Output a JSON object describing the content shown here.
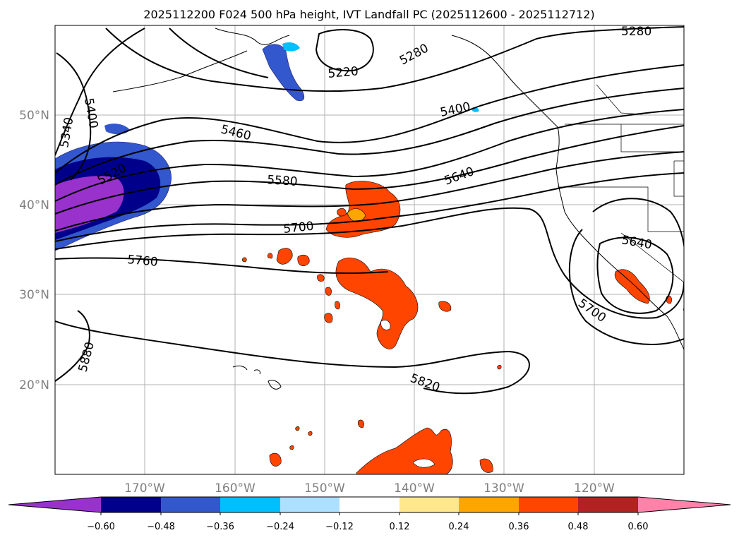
{
  "title": "2025112200 F024 500 hPa height, IVT Landfall PC (2025112600 - 2025112712)",
  "map": {
    "lat_labels": [
      {
        "lat": 50,
        "text": "50°N"
      },
      {
        "lat": 40,
        "text": "40°N"
      },
      {
        "lat": 30,
        "text": "30°N"
      },
      {
        "lat": 20,
        "text": "20°N"
      }
    ],
    "lon_labels": [
      {
        "lon": -170,
        "text": "170°W"
      },
      {
        "lon": -160,
        "text": "160°W"
      },
      {
        "lon": -150,
        "text": "150°W"
      },
      {
        "lon": -140,
        "text": "140°W"
      },
      {
        "lon": -130,
        "text": "130°W"
      },
      {
        "lon": -120,
        "text": "120°W"
      }
    ],
    "height_contour_labels": [
      "5280",
      "5220",
      "5280",
      "5400",
      "5340",
      "5400",
      "5460",
      "5520",
      "5580",
      "5640",
      "5700",
      "5760",
      "5640",
      "5700",
      "5880",
      "5820"
    ]
  },
  "colorbar": {
    "ticks": [
      "−0.60",
      "−0.48",
      "−0.36",
      "−0.24",
      "−0.12",
      "0.12",
      "0.24",
      "0.36",
      "0.48",
      "0.60"
    ],
    "colors": [
      "#9932cc",
      "#00008b",
      "#3357cc",
      "#00bfff",
      "#ade0ff",
      "#ffffff",
      "#ffe88c",
      "#ffa500",
      "#ff4500",
      "#b22222",
      "#ff82ab"
    ]
  }
}
